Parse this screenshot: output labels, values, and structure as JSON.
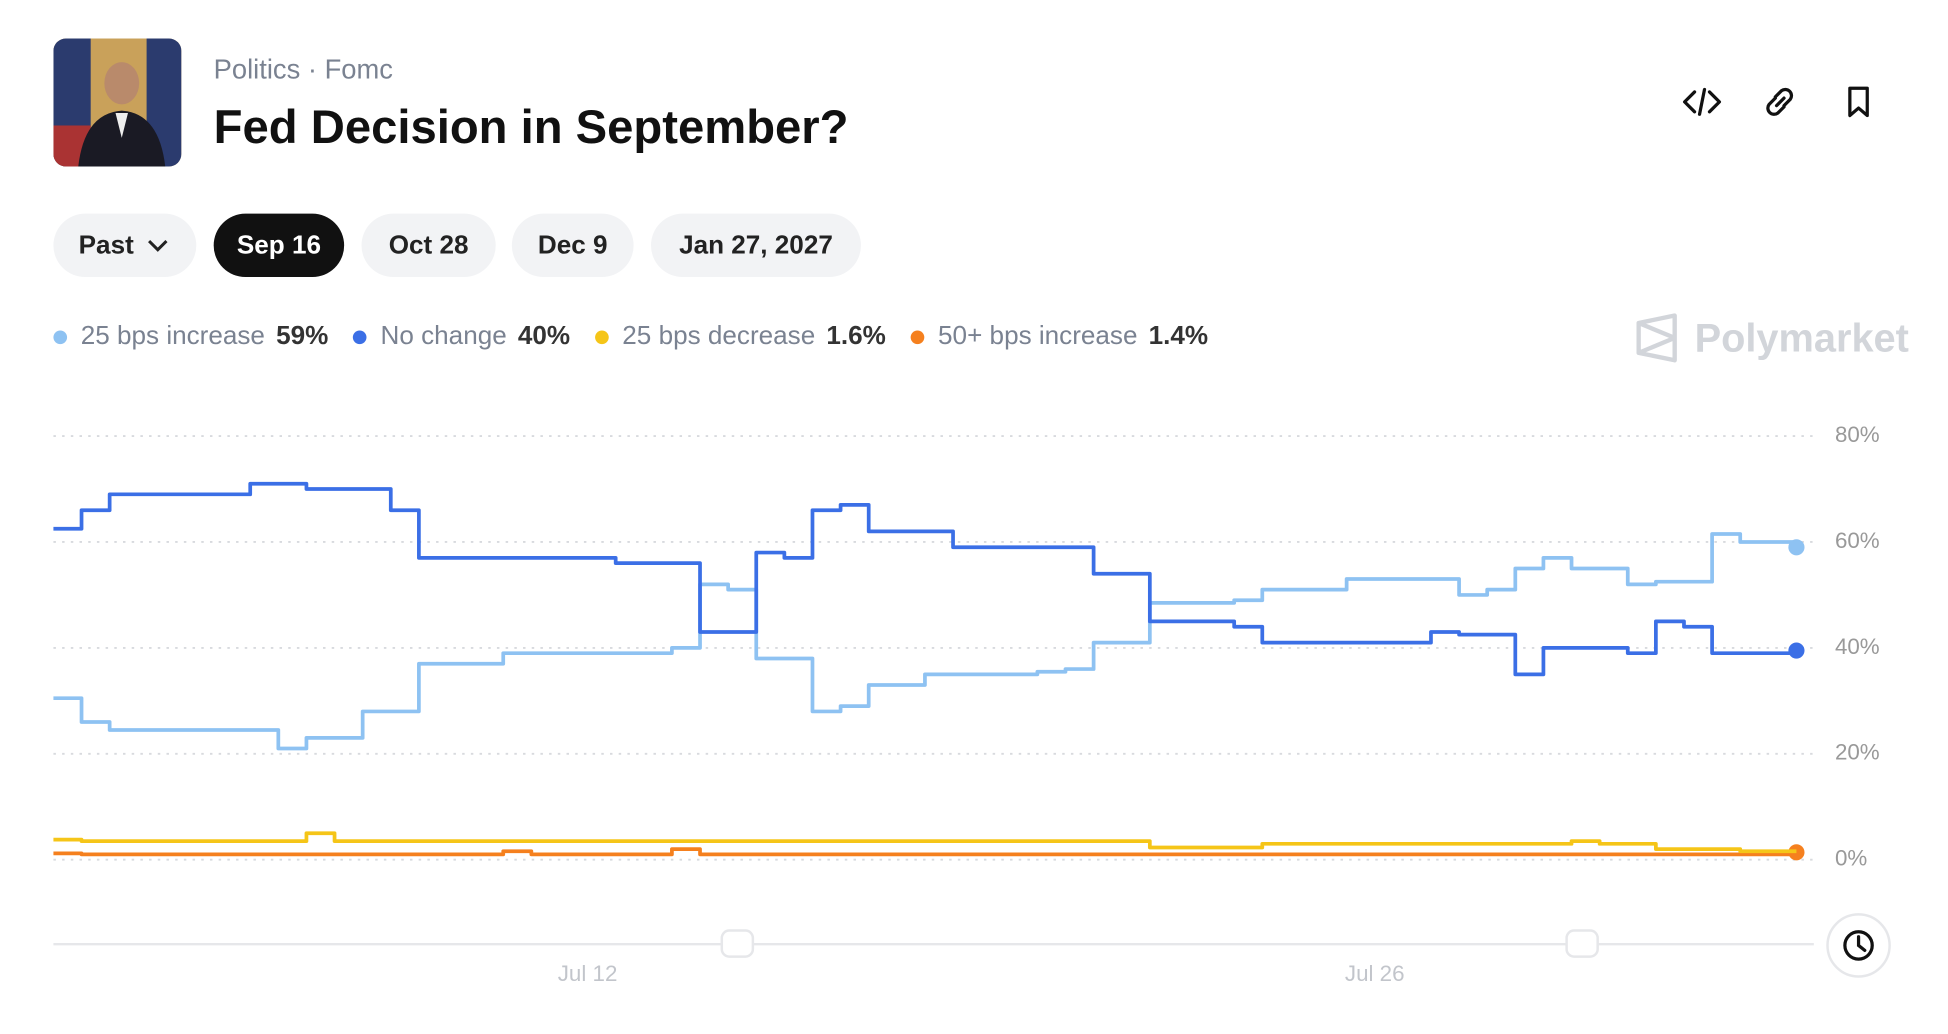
{
  "header": {
    "breadcrumb": [
      "Politics",
      "Fomc"
    ],
    "title": "Fed Decision in September?"
  },
  "tabs": [
    "Past",
    "Sep 16",
    "Oct 28",
    "Dec 9",
    "Jan 27, 2027"
  ],
  "watermark": "Polymarket",
  "chart_data": {
    "type": "line",
    "categories": [
      null,
      null,
      null,
      null,
      null,
      null,
      null,
      null,
      null,
      null,
      null,
      null,
      null,
      null,
      null,
      null,
      null,
      null,
      null,
      "Jul 12",
      null,
      null,
      null,
      null,
      null,
      null,
      null,
      null,
      null,
      null,
      null,
      null,
      null,
      null,
      null,
      null,
      null,
      null,
      null,
      null,
      null,
      null,
      null,
      null,
      null,
      null,
      null,
      "Jul 26",
      null,
      null,
      null,
      null,
      null,
      null,
      null,
      null,
      null,
      null,
      null,
      null,
      null,
      null,
      null
    ],
    "ylim": [
      0,
      80
    ],
    "yticks": [
      {
        "value": 0,
        "label": "0%"
      },
      {
        "value": 20,
        "label": "20%"
      },
      {
        "value": 40,
        "label": "40%"
      },
      {
        "value": 60,
        "label": "60%"
      },
      {
        "value": 80,
        "label": "80%"
      }
    ],
    "grid": true,
    "series": [
      {
        "name": "25 bps increase",
        "current": "59%",
        "color": "#8ec2f2",
        "values": [
          30.5,
          26,
          24.5,
          24.5,
          24.5,
          24.5,
          24.5,
          24.5,
          21,
          23,
          23,
          28,
          28,
          37,
          37,
          37,
          39,
          39,
          39,
          39,
          39,
          39,
          40,
          52,
          51,
          38,
          38,
          28,
          29,
          33,
          33,
          35,
          35,
          35,
          35,
          35.5,
          36,
          41,
          41,
          48.5,
          48.5,
          48.5,
          49,
          51,
          51,
          51,
          53,
          53,
          53,
          53,
          50,
          51,
          55,
          57,
          55,
          55,
          52,
          52.5,
          52.5,
          61.5,
          60,
          60,
          59
        ]
      },
      {
        "name": "No change",
        "current": "40%",
        "color": "#3b6fe6",
        "values": [
          62.5,
          66,
          69,
          69,
          69,
          69,
          69,
          71,
          71,
          70,
          70,
          70,
          66,
          57,
          57,
          57,
          57,
          57,
          57,
          57,
          56,
          56,
          56,
          43,
          43,
          58,
          57,
          66,
          67,
          62,
          62,
          62,
          59,
          59,
          59,
          59,
          59,
          54,
          54,
          45,
          45,
          45,
          44,
          41,
          41,
          41,
          41,
          41,
          41,
          43,
          42.5,
          42.5,
          35,
          40,
          40,
          40,
          39,
          45,
          44,
          39,
          39,
          39,
          39.5
        ]
      },
      {
        "name": "25 bps decrease",
        "current": "1.6%",
        "color": "#f5c518",
        "values": [
          3.8,
          3.5,
          3.5,
          3.5,
          3.5,
          3.5,
          3.5,
          3.5,
          3.5,
          5,
          3.5,
          3.5,
          3.5,
          3.5,
          3.5,
          3.5,
          3.5,
          3.5,
          3.5,
          3.5,
          3.5,
          3.5,
          3.5,
          3.5,
          3.5,
          3.5,
          3.5,
          3.5,
          3.5,
          3.5,
          3.5,
          3.5,
          3.5,
          3.5,
          3.5,
          3.5,
          3.5,
          3.5,
          3.5,
          2.3,
          2.3,
          2.3,
          2.3,
          3,
          3,
          3,
          3,
          3,
          3,
          3,
          3,
          3,
          3,
          3,
          3.5,
          3,
          3,
          2,
          2,
          2,
          1.6,
          1.6,
          1.6
        ]
      },
      {
        "name": "50+ bps increase",
        "current": "1.4%",
        "color": "#f5801e",
        "values": [
          1.2,
          1,
          1,
          1,
          1,
          1,
          1,
          1,
          1,
          1,
          1,
          1,
          1,
          1,
          1,
          1,
          1.6,
          1,
          1,
          1,
          1,
          1,
          2,
          1,
          1,
          1,
          1,
          1,
          1,
          1,
          1,
          1,
          1,
          1,
          1,
          1,
          1,
          1,
          1,
          1,
          1,
          1,
          1,
          1,
          1,
          1,
          1,
          1,
          1,
          1,
          1,
          1,
          1,
          1,
          1,
          1,
          1,
          1,
          1,
          1,
          1,
          1,
          1.4
        ]
      }
    ]
  }
}
